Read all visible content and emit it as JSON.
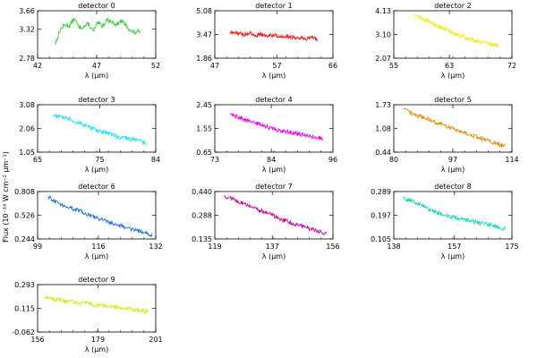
{
  "y_axis_label": "Flux (10⁻¹⁴ W cm⁻² µm⁻¹)",
  "chart_data": [
    {
      "type": "line",
      "title": "detector 0",
      "xlabel": "λ (µm)",
      "xlim": [
        42,
        52
      ],
      "ylim": [
        2.78,
        3.66
      ],
      "xticks": [
        "42",
        "47",
        "52"
      ],
      "yticks": [
        "2.78",
        "3.32",
        "3.66"
      ],
      "color": "#33cc33",
      "series": [
        {
          "x": [
            43.5,
            43.9,
            44.3,
            44.7,
            45.1,
            45.5,
            45.9,
            46.3,
            46.7,
            47.1,
            47.5,
            47.9,
            48.3,
            48.7,
            49.1,
            49.5,
            49.9,
            50.3,
            50.7
          ],
          "y": [
            3.05,
            3.3,
            3.4,
            3.38,
            3.52,
            3.35,
            3.36,
            3.42,
            3.28,
            3.43,
            3.38,
            3.5,
            3.45,
            3.4,
            3.48,
            3.38,
            3.28,
            3.25,
            3.3
          ]
        }
      ]
    },
    {
      "type": "line",
      "title": "detector 1",
      "xlabel": "λ (µm)",
      "xlim": [
        47,
        66
      ],
      "ylim": [
        1.86,
        5.08
      ],
      "xticks": [
        "47",
        "57",
        "66"
      ],
      "yticks": [
        "1.86",
        "3.47",
        "5.08"
      ],
      "color": "#ee1111",
      "series": [
        {
          "x": [
            49.5,
            50.5,
            51.5,
            52.5,
            53.5,
            54.5,
            55.5,
            56.5,
            57.5,
            58.5,
            59.5,
            60.5,
            61.5,
            62.5,
            63.5
          ],
          "y": [
            3.55,
            3.6,
            3.45,
            3.55,
            3.4,
            3.5,
            3.35,
            3.45,
            3.3,
            3.4,
            3.25,
            3.3,
            3.2,
            3.25,
            3.1
          ]
        }
      ]
    },
    {
      "type": "line",
      "title": "detector 2",
      "xlabel": "λ (µm)",
      "xlim": [
        55,
        72
      ],
      "ylim": [
        2.07,
        4.13
      ],
      "xticks": [
        "55",
        "63",
        "72"
      ],
      "yticks": [
        "2.07",
        "3.10",
        "4.13"
      ],
      "color": "#eeee00",
      "series": [
        {
          "x": [
            58,
            59,
            60,
            61,
            62,
            63,
            64,
            65,
            66,
            67,
            68,
            69,
            70
          ],
          "y": [
            3.98,
            3.8,
            3.65,
            3.52,
            3.4,
            3.25,
            3.12,
            3.0,
            2.9,
            2.82,
            2.75,
            2.65,
            2.6
          ]
        }
      ]
    },
    {
      "type": "line",
      "title": "detector 3",
      "xlabel": "λ (µm)",
      "xlim": [
        65,
        84
      ],
      "ylim": [
        1.05,
        3.08
      ],
      "xticks": [
        "65",
        "75",
        "84"
      ],
      "yticks": [
        "1.05",
        "2.06",
        "3.08"
      ],
      "color": "#00e5ee",
      "series": [
        {
          "x": [
            67.5,
            69,
            70.5,
            72,
            73.5,
            75,
            76.5,
            78,
            79.5,
            81,
            82.5
          ],
          "y": [
            2.65,
            2.55,
            2.4,
            2.25,
            2.1,
            1.95,
            1.85,
            1.7,
            1.65,
            1.55,
            1.45
          ]
        }
      ]
    },
    {
      "type": "line",
      "title": "detector 4",
      "xlabel": "λ (µm)",
      "xlim": [
        73,
        96
      ],
      "ylim": [
        0.65,
        2.45
      ],
      "xticks": [
        "73",
        "84",
        "96"
      ],
      "yticks": [
        "0.65",
        "1.55",
        "2.45"
      ],
      "color": "#ee00ee",
      "series": [
        {
          "x": [
            76,
            78,
            80,
            82,
            84,
            86,
            88,
            90,
            92,
            94
          ],
          "y": [
            2.1,
            1.95,
            1.8,
            1.7,
            1.55,
            1.45,
            1.4,
            1.3,
            1.25,
            1.15
          ]
        }
      ]
    },
    {
      "type": "line",
      "title": "detector 5",
      "xlabel": "λ (µm)",
      "xlim": [
        80,
        114
      ],
      "ylim": [
        0.44,
        1.73
      ],
      "xticks": [
        "80",
        "97",
        "114"
      ],
      "yticks": [
        "0.44",
        "1.08",
        "1.73"
      ],
      "color": "#e08a00",
      "series": [
        {
          "x": [
            83,
            86,
            89,
            92,
            95,
            98,
            101,
            104,
            107,
            110,
            112
          ],
          "y": [
            1.6,
            1.45,
            1.38,
            1.25,
            1.15,
            1.05,
            0.95,
            0.85,
            0.75,
            0.65,
            0.6
          ]
        }
      ]
    },
    {
      "type": "line",
      "title": "detector 6",
      "xlabel": "λ (µm)",
      "xlim": [
        99,
        132
      ],
      "ylim": [
        0.244,
        0.808
      ],
      "xticks": [
        "99",
        "116",
        "132"
      ],
      "yticks": [
        "0.244",
        "0.526",
        "0.808"
      ],
      "color": "#1a6fd6",
      "series": [
        {
          "x": [
            102,
            105,
            108,
            111,
            114,
            117,
            120,
            123,
            126,
            129,
            131
          ],
          "y": [
            0.74,
            0.66,
            0.62,
            0.57,
            0.52,
            0.47,
            0.43,
            0.39,
            0.35,
            0.32,
            0.29
          ]
        }
      ]
    },
    {
      "type": "line",
      "title": "detector 7",
      "xlabel": "λ (µm)",
      "xlim": [
        119,
        156
      ],
      "ylim": [
        0.135,
        0.44
      ],
      "xticks": [
        "119",
        "137",
        "156"
      ],
      "yticks": [
        "0.135",
        "0.288",
        "0.440"
      ],
      "color": "#cc0099",
      "series": [
        {
          "x": [
            122,
            125,
            128,
            131,
            134,
            137,
            140,
            143,
            146,
            149,
            152,
            154
          ],
          "y": [
            0.41,
            0.39,
            0.36,
            0.34,
            0.31,
            0.29,
            0.26,
            0.24,
            0.22,
            0.2,
            0.18,
            0.17
          ]
        }
      ]
    },
    {
      "type": "line",
      "title": "detector 8",
      "xlabel": "λ (µm)",
      "xlim": [
        138,
        175
      ],
      "ylim": [
        0.105,
        0.289
      ],
      "xticks": [
        "138",
        "157",
        "175"
      ],
      "yticks": [
        "0.105",
        "0.197",
        "0.289"
      ],
      "color": "#00ddaa",
      "series": [
        {
          "x": [
            141,
            144,
            147,
            150,
            153,
            156,
            159,
            162,
            165,
            168,
            171,
            173
          ],
          "y": [
            0.265,
            0.25,
            0.235,
            0.215,
            0.2,
            0.19,
            0.185,
            0.175,
            0.165,
            0.16,
            0.15,
            0.145
          ]
        }
      ]
    },
    {
      "type": "line",
      "title": "detector 9",
      "xlabel": "λ (µm)",
      "xlim": [
        156,
        201
      ],
      "ylim": [
        -0.062,
        0.293
      ],
      "xticks": [
        "156",
        "179",
        "201"
      ],
      "yticks": [
        "-0.062",
        "0.115",
        "0.293"
      ],
      "color": "#c8ee00",
      "series": [
        {
          "x": [
            159,
            163,
            167,
            171,
            175,
            179,
            183,
            187,
            191,
            195,
            198
          ],
          "y": [
            0.2,
            0.18,
            0.17,
            0.16,
            0.15,
            0.14,
            0.13,
            0.12,
            0.11,
            0.1,
            0.09
          ]
        }
      ]
    }
  ]
}
